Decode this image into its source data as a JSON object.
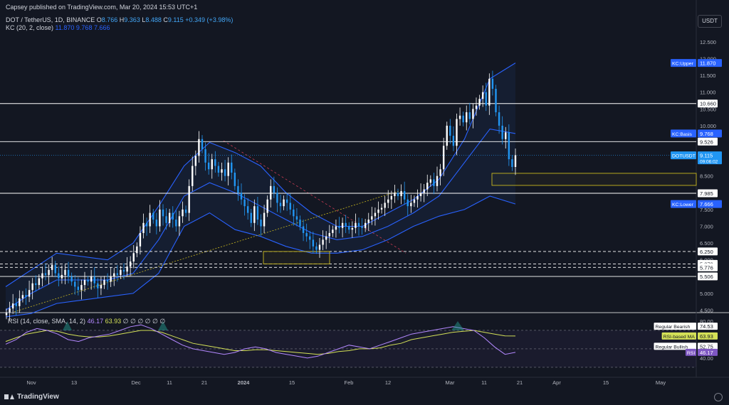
{
  "publisher": "Capsey published on TradingView.com, Mar 20, 2024 15:53 UTC+1",
  "symbol_line": {
    "pair": "DOT / TetherUS, 1D, BINANCE",
    "open_label": "O",
    "open": "8.766",
    "high_label": "H",
    "high": "9.363",
    "low_label": "L",
    "low": "8.488",
    "close_label": "C",
    "close": "9.115",
    "change": "+0.349 (+3.98%)"
  },
  "indicator_line": {
    "name": "KC (20, 2, close)",
    "upper": "11.870",
    "basis": "9.768",
    "lower": "7.666"
  },
  "rsi_header": {
    "name": "RSI (14, close, SMA, 14, 2)",
    "rsi": "46.17",
    "ma": "63.93",
    "placeholders": "∅ ∅ ∅ ∅ ∅ ∅"
  },
  "currency_button": "USDT",
  "logo_text": "TradingView",
  "colors": {
    "background": "#131722",
    "up": "#ffffff",
    "down": "#2196f3",
    "kc_line": "#2962ff",
    "rsi": "#b388ff",
    "rsi_ma": "#d4e157",
    "zone": "#c9b81f"
  },
  "chart_data": {
    "type": "candlestick",
    "price_axis_ticks": [
      "12.500",
      "12.000",
      "11.500",
      "11.000",
      "10.500",
      "10.000",
      "9.500",
      "9.000",
      "8.500",
      "8.000",
      "7.500",
      "7.000",
      "6.500",
      "6.000",
      "5.500",
      "5.000",
      "4.500"
    ],
    "ylim": [
      4.3,
      12.9
    ],
    "time_axis_ticks": [
      "Nov",
      "13",
      "Dec",
      "11",
      "21",
      "2024",
      "15",
      "Feb",
      "12",
      "Mar",
      "11",
      "21",
      "Apr",
      "15",
      "May"
    ],
    "horizontal_levels": [
      {
        "value": 10.66,
        "label": "10.660",
        "style": "solid"
      },
      {
        "value": 9.526,
        "label": "9.526",
        "style": "solid"
      },
      {
        "value": 7.985,
        "label": "7.985",
        "style": "solid"
      },
      {
        "value": 6.25,
        "label": "6.250",
        "style": "dashed"
      },
      {
        "value": 5.879,
        "label": "5.879",
        "style": "dashed"
      },
      {
        "value": 5.776,
        "label": "5.776",
        "style": "dashed"
      },
      {
        "value": 5.506,
        "label": "5.506",
        "style": "solid"
      }
    ],
    "price_tags": [
      {
        "label": "KC:Upper",
        "value": "11.870"
      },
      {
        "label": "KC:Basis",
        "value": "9.768"
      },
      {
        "label": "DOTUSDT",
        "value": "9.115",
        "sub": "09:06:02"
      },
      {
        "label": "KC:Lower",
        "value": "7.666"
      }
    ],
    "closes": [
      4.43,
      4.55,
      4.7,
      4.62,
      4.85,
      4.95,
      4.9,
      5.1,
      5.3,
      5.25,
      5.45,
      5.6,
      5.55,
      5.7,
      5.85,
      5.6,
      5.45,
      5.55,
      5.7,
      5.5,
      5.35,
      5.2,
      5.1,
      5.25,
      5.4,
      5.35,
      5.5,
      5.3,
      5.15,
      5.25,
      5.4,
      5.35,
      5.5,
      5.6,
      5.55,
      5.7,
      5.65,
      5.8,
      5.95,
      6.2,
      6.4,
      6.8,
      7.1,
      7.0,
      7.4,
      7.2,
      7.0,
      7.5,
      7.3,
      7.1,
      7.4,
      7.2,
      7.0,
      7.3,
      7.5,
      7.4,
      8.2,
      8.8,
      9.1,
      9.6,
      9.3,
      8.9,
      8.7,
      9.0,
      8.8,
      8.6,
      8.7,
      8.5,
      8.9,
      8.6,
      8.2,
      8.0,
      7.8,
      7.6,
      7.4,
      7.1,
      7.6,
      7.2,
      7.0,
      7.4,
      7.8,
      8.2,
      8.0,
      7.7,
      7.6,
      7.8,
      7.7,
      7.5,
      7.3,
      7.2,
      7.0,
      6.8,
      6.7,
      6.6,
      6.4,
      6.3,
      6.45,
      6.6,
      6.7,
      6.8,
      6.9,
      7.0,
      6.95,
      7.1,
      7.0,
      6.9,
      6.95,
      7.1,
      7.0,
      6.95,
      7.1,
      7.2,
      7.3,
      7.4,
      7.5,
      7.55,
      7.7,
      7.8,
      7.9,
      8.0,
      7.9,
      8.05,
      7.8,
      7.6,
      7.7,
      7.8,
      7.9,
      8.0,
      8.1,
      8.3,
      8.4,
      8.2,
      8.5,
      8.7,
      9.4,
      10.0,
      9.7,
      9.4,
      10.2,
      10.3,
      10.1,
      10.4,
      10.2,
      10.5,
      10.6,
      10.8,
      11.0,
      10.6,
      11.4,
      11.1,
      10.4,
      10.0,
      9.6,
      9.8,
      9.0,
      8.77,
      9.12
    ],
    "kc_upper": [
      5.2,
      5.7,
      6.2,
      6.1,
      6.0,
      6.5,
      7.6,
      8.8,
      9.5,
      9.2,
      8.8,
      8.0,
      7.4,
      7.0,
      7.0,
      7.4,
      7.8,
      8.4,
      9.6,
      11.4,
      11.87
    ],
    "kc_basis": [
      4.5,
      5.0,
      5.4,
      5.4,
      5.4,
      5.6,
      6.6,
      7.9,
      8.3,
      8.0,
      7.6,
      7.2,
      6.8,
      6.6,
      6.7,
      7.0,
      7.4,
      7.9,
      8.9,
      9.9,
      9.768
    ],
    "kc_lower": [
      4.3,
      4.4,
      4.7,
      4.8,
      4.9,
      5.0,
      5.6,
      7.0,
      7.4,
      6.9,
      6.7,
      6.4,
      6.2,
      6.2,
      6.3,
      6.6,
      7.0,
      7.3,
      7.5,
      7.9,
      7.666
    ],
    "rsi_axis_ticks": [
      "80.00",
      "40.00"
    ],
    "rsi_tags": [
      {
        "label": "Regular Bearish",
        "value": "74.53"
      },
      {
        "label": "RSI-based MA",
        "value": "63.93"
      },
      {
        "label": "Regular Bullish",
        "value": "52.75"
      },
      {
        "label": "RSI",
        "value": "46.17"
      }
    ],
    "rsi_values": [
      55,
      60,
      68,
      72,
      70,
      66,
      60,
      58,
      62,
      64,
      66,
      70,
      74,
      76,
      72,
      66,
      60,
      54,
      50,
      48,
      46,
      44,
      46,
      50,
      52,
      50,
      46,
      44,
      42,
      40,
      42,
      46,
      50,
      54,
      52,
      50,
      54,
      58,
      62,
      66,
      68,
      70,
      72,
      74,
      72,
      70,
      62,
      52,
      44,
      46.17
    ],
    "rsi_ma_values": [
      58,
      62,
      66,
      68,
      70,
      69,
      66,
      64,
      63,
      63,
      64,
      66,
      68,
      70,
      70,
      68,
      64,
      60,
      56,
      54,
      52,
      50,
      48,
      48,
      49,
      49,
      48,
      47,
      46,
      45,
      44,
      45,
      47,
      48,
      50,
      50,
      51,
      54,
      56,
      60,
      62,
      64,
      66,
      68,
      69,
      70,
      68,
      66,
      64,
      63.93
    ]
  }
}
